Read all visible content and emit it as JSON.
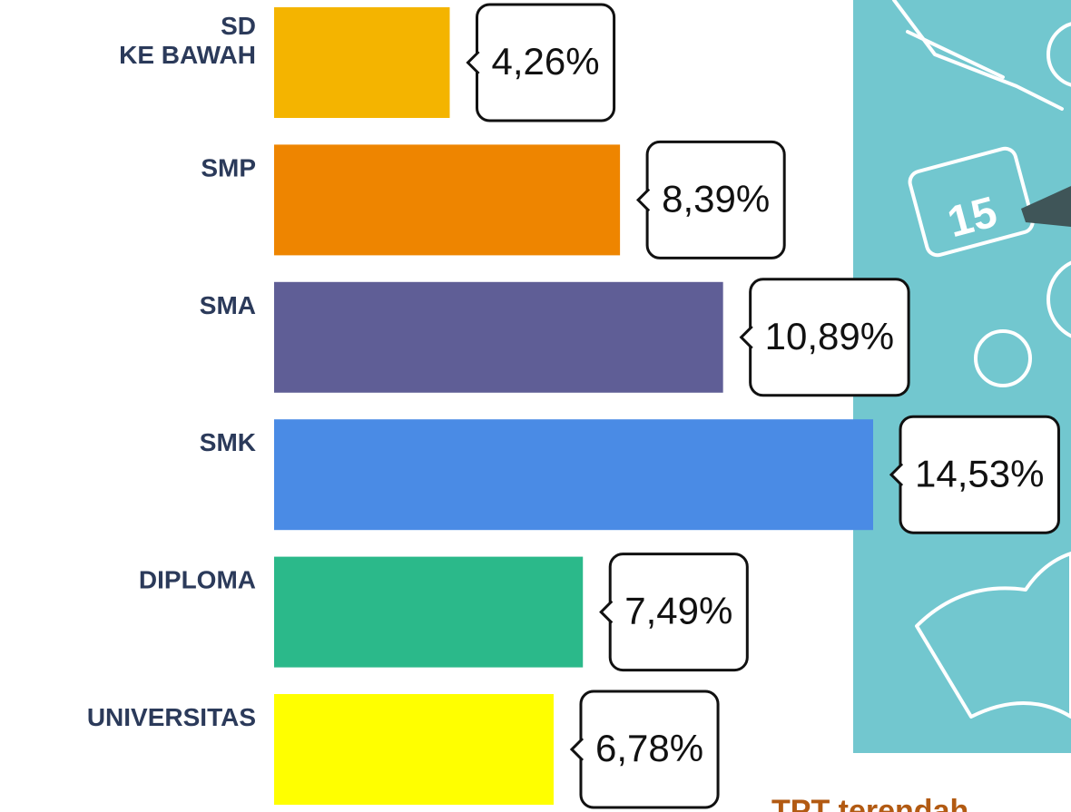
{
  "chart_data": {
    "type": "bar",
    "orientation": "horizontal",
    "categories": [
      "SD\nKE BAWAH",
      "SMP",
      "SMA",
      "SMK",
      "DIPLOMA",
      "UNIVERSITAS"
    ],
    "values": [
      4.26,
      8.39,
      10.89,
      14.53,
      7.49,
      6.78
    ],
    "value_labels": [
      "4,26%",
      "8,39%",
      "10,89%",
      "14,53%",
      "7,49%",
      "6,78%"
    ],
    "colors": [
      "#f4b400",
      "#ee8500",
      "#5f5e96",
      "#4a8be5",
      "#2bb98a",
      "#ffff00"
    ],
    "annotation": "TPT terendah"
  }
}
